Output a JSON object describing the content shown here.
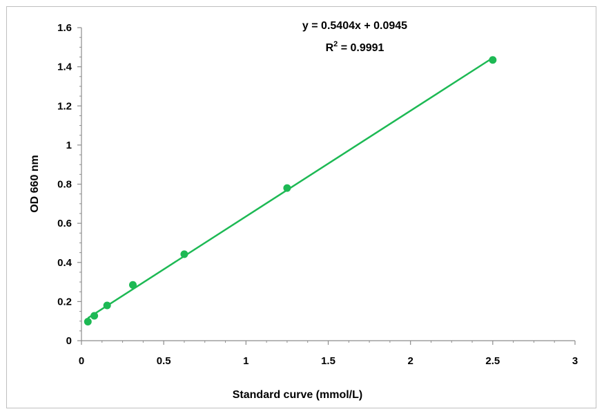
{
  "chart_data": {
    "type": "scatter",
    "title": "",
    "xlabel": "Standard curve (mmol/L)",
    "ylabel": "OD 660 nm",
    "xlim": [
      0,
      3
    ],
    "ylim": [
      0,
      1.6
    ],
    "x_ticks": [
      "0",
      "0.5",
      "1",
      "1.5",
      "2",
      "2.5",
      "3"
    ],
    "y_ticks": [
      "0",
      "0.2",
      "0.4",
      "0.6",
      "0.8",
      "1",
      "1.2",
      "1.4",
      "1.6"
    ],
    "grid": false,
    "series": [
      {
        "x": [
          0.039,
          0.078,
          0.156,
          0.3125,
          0.625,
          1.25,
          2.5
        ],
        "y": [
          0.097,
          0.127,
          0.18,
          0.285,
          0.442,
          0.78,
          1.435
        ],
        "color": "#1db954"
      }
    ],
    "trendline": {
      "equation": "y = 0.5404x + 0.0945",
      "r2_prefix": "R",
      "r2_sup": "2",
      "r2_rest": " = 0.9991",
      "slope": 0.5404,
      "intercept": 0.0945,
      "x_range": [
        0.039,
        2.5
      ],
      "color": "#1db954"
    }
  }
}
